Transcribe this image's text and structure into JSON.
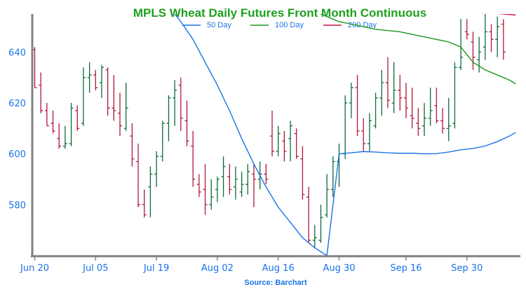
{
  "chart_data": {
    "type": "ohlc",
    "title": "MPLS Wheat Daily Futures Front Month Continuous",
    "source": "Source: Barchart",
    "ylim": [
      560,
      655
    ],
    "y_ticks": [
      580,
      600,
      620,
      640
    ],
    "x_ticks": [
      {
        "label": "Jun 20",
        "index": 0
      },
      {
        "label": "Jul 05",
        "index": 10
      },
      {
        "label": "Jul 19",
        "index": 20
      },
      {
        "label": "Aug 02",
        "index": 30
      },
      {
        "label": "Aug 16",
        "index": 40
      },
      {
        "label": "Aug 30",
        "index": 50
      },
      {
        "label": "Sep 16",
        "index": 61
      },
      {
        "label": "Sep 30",
        "index": 71
      }
    ],
    "colors": {
      "title": "#1ea01e",
      "up": "#0b6b3a",
      "down": "#b0163a",
      "ma50": "#1a73e8",
      "ma100": "#1a9a1a",
      "ma200": "#cc1144",
      "axis": "#808080",
      "tick_label": "#1a73e8",
      "source": "#1a73e8"
    },
    "legend": [
      {
        "name": "50 Day",
        "color": "#1a73e8"
      },
      {
        "name": "100 Day",
        "color": "#1a9a1a"
      },
      {
        "name": "200 Day",
        "color": "#cc1144"
      }
    ],
    "ohlc": [
      [
        641,
        642,
        626,
        626
      ],
      [
        627,
        632,
        616,
        617
      ],
      [
        617,
        620,
        611,
        611
      ],
      [
        612,
        617,
        608,
        609
      ],
      [
        606,
        612,
        602,
        603
      ],
      [
        603,
        611,
        602,
        604
      ],
      [
        604,
        620,
        603,
        618
      ],
      [
        617,
        619,
        609,
        610
      ],
      [
        612,
        634,
        611,
        630
      ],
      [
        630,
        636,
        624,
        631
      ],
      [
        631,
        633,
        625,
        626
      ],
      [
        628,
        635,
        622,
        634
      ],
      [
        633,
        634,
        615,
        618
      ],
      [
        618,
        631,
        613,
        617
      ],
      [
        616,
        624,
        607,
        611
      ],
      [
        610,
        628,
        609,
        618
      ],
      [
        607,
        612,
        595,
        598
      ],
      [
        597,
        604,
        579,
        580
      ],
      [
        580,
        586,
        575,
        576
      ],
      [
        587,
        595,
        575,
        592
      ],
      [
        592,
        601,
        587,
        599
      ],
      [
        599,
        613,
        597,
        612
      ],
      [
        612,
        623,
        605,
        622
      ],
      [
        622,
        629,
        611,
        625
      ],
      [
        627,
        630,
        609,
        614
      ],
      [
        613,
        621,
        603,
        605
      ],
      [
        603,
        609,
        587,
        590
      ],
      [
        588,
        592,
        583,
        585
      ],
      [
        586,
        596,
        576,
        580
      ],
      [
        580,
        590,
        578,
        583
      ],
      [
        586,
        591,
        581,
        590
      ],
      [
        591,
        599,
        583,
        595
      ],
      [
        591,
        596,
        584,
        586
      ],
      [
        587,
        595,
        582,
        590
      ],
      [
        585,
        593,
        583,
        588
      ],
      [
        588,
        596,
        584,
        593
      ],
      [
        592,
        596,
        579,
        590
      ],
      [
        590,
        597,
        586,
        592
      ],
      [
        592,
        596,
        588,
        590
      ],
      [
        607,
        617,
        599,
        601
      ],
      [
        601,
        611,
        599,
        608
      ],
      [
        605,
        609,
        597,
        601
      ],
      [
        606,
        613,
        597,
        611
      ],
      [
        608,
        610,
        598,
        599
      ],
      [
        598,
        603,
        582,
        584
      ],
      [
        583,
        587,
        565,
        566
      ],
      [
        566,
        572,
        563,
        567
      ],
      [
        566,
        580,
        565,
        575
      ],
      [
        576,
        592,
        575,
        586
      ],
      [
        586,
        599,
        583,
        597
      ],
      [
        597,
        604,
        587,
        600
      ],
      [
        600,
        623,
        598,
        620
      ],
      [
        620,
        628,
        614,
        626
      ],
      [
        626,
        631,
        607,
        609
      ],
      [
        609,
        614,
        601,
        604
      ],
      [
        604,
        616,
        601,
        613
      ],
      [
        611,
        624,
        610,
        622
      ],
      [
        622,
        633,
        615,
        628
      ],
      [
        628,
        638,
        618,
        621
      ],
      [
        620,
        636,
        616,
        625
      ],
      [
        625,
        631,
        617,
        622
      ],
      [
        622,
        628,
        614,
        618
      ],
      [
        615,
        626,
        610,
        614
      ],
      [
        612,
        618,
        607,
        610
      ],
      [
        611,
        620,
        607,
        614
      ],
      [
        614,
        626,
        611,
        617
      ],
      [
        619,
        626,
        612,
        613
      ],
      [
        613,
        618,
        608,
        610
      ],
      [
        610,
        622,
        605,
        611
      ],
      [
        612,
        636,
        610,
        634
      ],
      [
        634,
        653,
        633,
        638
      ],
      [
        648,
        653,
        645,
        647
      ],
      [
        644,
        648,
        633,
        638
      ],
      [
        637,
        646,
        632,
        640
      ],
      [
        642,
        655,
        637,
        648
      ],
      [
        648,
        651,
        640,
        645
      ],
      [
        645,
        654,
        638,
        650
      ],
      [
        651,
        653,
        637,
        640
      ]
    ],
    "series": [
      {
        "name": "50 Day",
        "values": [
          [
            22,
            658
          ],
          [
            24,
            652
          ],
          [
            26,
            645
          ],
          [
            28,
            636
          ],
          [
            30,
            627
          ],
          [
            32,
            617
          ],
          [
            34,
            606
          ],
          [
            36,
            596
          ],
          [
            38,
            587
          ],
          [
            40,
            579
          ],
          [
            42,
            573
          ],
          [
            44,
            567
          ],
          [
            46,
            563
          ],
          [
            48,
            560
          ],
          [
            50,
            600
          ],
          [
            52,
            600.4
          ],
          [
            54,
            600.9
          ],
          [
            56,
            600.7
          ],
          [
            58,
            600.4
          ],
          [
            60,
            600.2
          ],
          [
            62,
            600.2
          ],
          [
            64,
            600.0
          ],
          [
            66,
            600.1
          ],
          [
            68,
            600.7
          ],
          [
            70,
            601.6
          ],
          [
            72,
            602.1
          ],
          [
            74,
            603.1
          ],
          [
            76,
            604.8
          ],
          [
            78,
            607.0
          ],
          [
            79,
            608.4
          ]
        ]
      },
      {
        "name": "100 Day",
        "values": [
          [
            29,
            664
          ],
          [
            34,
            663
          ],
          [
            38,
            662
          ],
          [
            42,
            660
          ],
          [
            46,
            656
          ],
          [
            50,
            652
          ],
          [
            52,
            651
          ],
          [
            56,
            649
          ],
          [
            60,
            648
          ],
          [
            64,
            646
          ],
          [
            68,
            644
          ],
          [
            70,
            642
          ],
          [
            72,
            636
          ],
          [
            74,
            633
          ],
          [
            76,
            631
          ],
          [
            78,
            629
          ],
          [
            79,
            627.5
          ]
        ]
      },
      {
        "name": "200 Day",
        "values": [
          [
            67,
            665
          ],
          [
            70,
            658
          ],
          [
            72,
            656
          ],
          [
            74,
            655.5
          ],
          [
            76,
            655.2
          ],
          [
            78,
            654.8
          ],
          [
            79,
            654.6
          ]
        ]
      }
    ]
  }
}
